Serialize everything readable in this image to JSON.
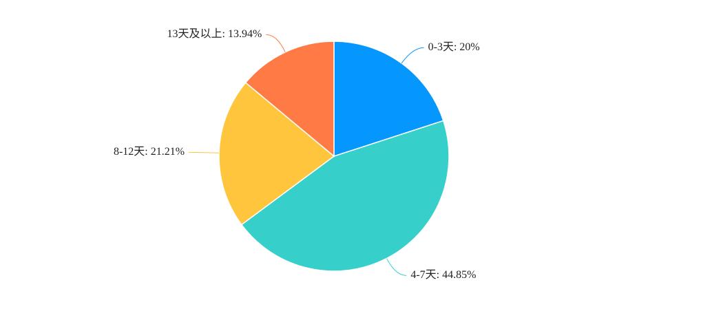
{
  "chart_data": {
    "type": "pie",
    "values": [
      20,
      44.85,
      21.21,
      13.94
    ],
    "value_labels": [
      "0-3天: 20%",
      "4-7天: 44.85%",
      "8-12天: 21.21%",
      "13天及以上: 13.94%"
    ],
    "colors": [
      "#0596fe",
      "#36cfc9",
      "#ffc53d",
      "#ff7a45"
    ]
  }
}
